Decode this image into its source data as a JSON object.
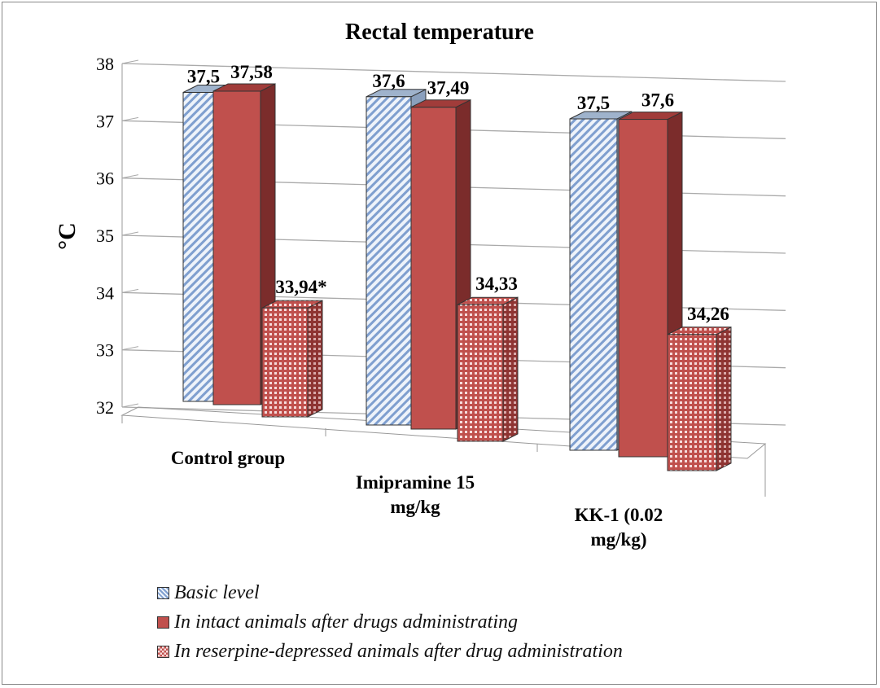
{
  "chart_data": {
    "type": "bar",
    "title": "Rectal temperature",
    "xlabel": "",
    "ylabel": "°C",
    "ylim": [
      32,
      38
    ],
    "yticks": [
      "32",
      "33",
      "34",
      "35",
      "36",
      "37",
      "38"
    ],
    "grid": true,
    "legend_placement": "bottom",
    "categories": [
      "Control group",
      "Imipramine 15 mg/kg",
      "KK-1 (0.02 mg/kg)"
    ],
    "series": [
      {
        "name": "Basic level",
        "values": [
          37.5,
          37.6,
          37.5
        ],
        "labels": [
          "37,5",
          "37,6",
          "37,5"
        ],
        "color": "#b8cce4",
        "pattern": "diagonal-stripes"
      },
      {
        "name": "In intact animals after drugs administrating",
        "values": [
          37.58,
          37.49,
          37.6
        ],
        "labels": [
          "37,58",
          "37,49",
          "37,6"
        ],
        "color": "#c0504d",
        "pattern": "solid"
      },
      {
        "name": "In reserpine-depressed animals after drug administration",
        "values": [
          33.94,
          34.33,
          34.26
        ],
        "labels": [
          "33,94*",
          "34,33",
          "34,26"
        ],
        "color": "#c0504d",
        "pattern": "checkered"
      }
    ]
  }
}
